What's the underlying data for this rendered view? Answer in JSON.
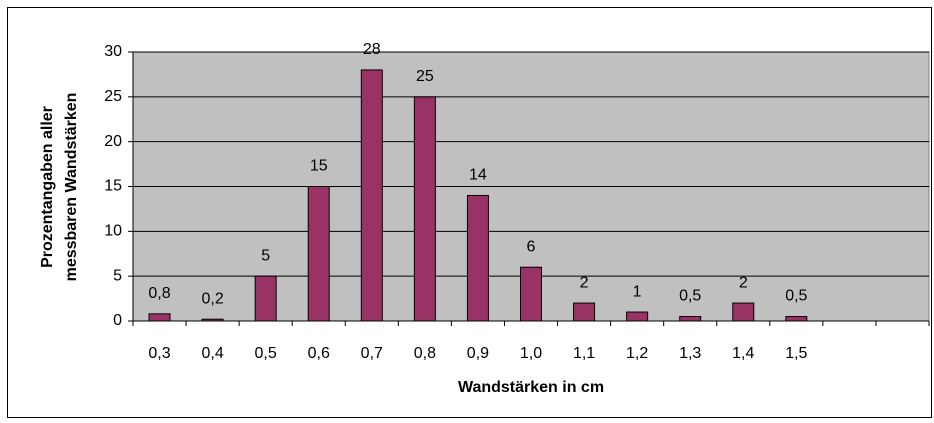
{
  "chart_data": {
    "type": "bar",
    "x_label": "Wandstärken in cm",
    "y_label": [
      "Prozentangaben aller",
      "messbaren Wandstärken"
    ],
    "categories": [
      "0,3",
      "0,4",
      "0,5",
      "0,6",
      "0,7",
      "0,8",
      "0,9",
      "1,0",
      "1,1",
      "1,2",
      "1,3",
      "1,4",
      "1,5",
      null,
      null
    ],
    "values": [
      0.8,
      0.2,
      5,
      15,
      28,
      25,
      14,
      6,
      2,
      1,
      0.5,
      2,
      0.5,
      null,
      null
    ],
    "value_labels": [
      "0,8",
      "0,2",
      "5",
      "15",
      "28",
      "25",
      "14",
      "6",
      "2",
      "1",
      "0,5",
      "2",
      "0,5",
      null,
      null
    ],
    "color": "#993366",
    "ylim": [
      0,
      30
    ],
    "yticks": [
      0,
      5,
      10,
      15,
      20,
      25,
      30
    ],
    "grid": true
  }
}
